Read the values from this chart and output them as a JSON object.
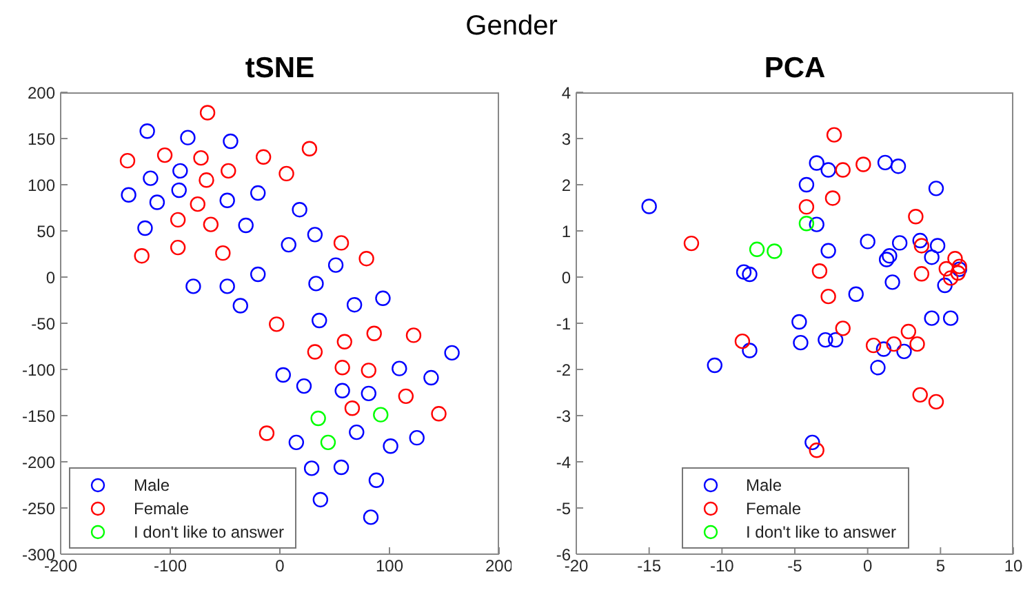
{
  "chart_data": [
    {
      "type": "scatter",
      "title": "tSNE",
      "annotations": [
        "Gender"
      ],
      "xlim": [
        -200,
        200
      ],
      "xticks": [
        -200,
        -100,
        0,
        100,
        200
      ],
      "ylim": [
        -300,
        200
      ],
      "yticks": [
        -300,
        -250,
        -200,
        -150,
        -100,
        -50,
        0,
        50,
        100,
        150,
        200
      ],
      "grid": false,
      "legend": "bottom left",
      "marker": "circle",
      "series": [
        {
          "name": "Male",
          "color": "#0000ff",
          "x": [
            -121,
            -84,
            -45,
            -118,
            -91,
            -138,
            -112,
            -92,
            -48,
            -20,
            -123,
            -31,
            18,
            32,
            8,
            51,
            -20,
            -79,
            -48,
            -36,
            33,
            68,
            94,
            36,
            157,
            3,
            22,
            57,
            81,
            109,
            138,
            15,
            70,
            101,
            125,
            29,
            56,
            88,
            37,
            83
          ],
          "values": [
            158,
            151,
            147,
            107,
            115,
            89,
            81,
            94,
            83,
            91,
            53,
            56,
            73,
            46,
            35,
            13,
            3,
            -10,
            -10,
            -31,
            -7,
            -30,
            -23,
            -47,
            -82,
            -106,
            -118,
            -123,
            -126,
            -99,
            -109,
            -179,
            -168,
            -183,
            -174,
            -207,
            -206,
            -220,
            -241,
            -260
          ]
        },
        {
          "name": "Female",
          "color": "#ff0000",
          "x": [
            -66,
            -105,
            -72,
            -139,
            -15,
            27,
            -47,
            6,
            -67,
            -75,
            -93,
            -63,
            -93,
            -126,
            -52,
            56,
            79,
            -3,
            59,
            86,
            122,
            32,
            57,
            81,
            115,
            66,
            145,
            -12
          ],
          "values": [
            178,
            132,
            129,
            126,
            130,
            139,
            115,
            112,
            105,
            79,
            62,
            57,
            32,
            23,
            26,
            37,
            20,
            -51,
            -70,
            -61,
            -63,
            -81,
            -98,
            -101,
            -129,
            -142,
            -148,
            -169
          ]
        },
        {
          "name": "I don't like to answer",
          "color": "#00ff00",
          "x": [
            35,
            92,
            44
          ],
          "values": [
            -153,
            -149,
            -179
          ]
        }
      ]
    },
    {
      "type": "scatter",
      "title": "PCA",
      "xlim": [
        -20,
        10
      ],
      "xticks": [
        -20,
        -15,
        -10,
        -5,
        0,
        5,
        10
      ],
      "ylim": [
        -6,
        4
      ],
      "yticks": [
        -6,
        -5,
        -4,
        -3,
        -2,
        -1,
        0,
        1,
        2,
        3,
        4
      ],
      "grid": false,
      "legend": "bottom",
      "marker": "circle",
      "series": [
        {
          "name": "Male",
          "color": "#0000ff",
          "x": [
            -15.0,
            -8.5,
            -8.1,
            -4.2,
            -3.5,
            -2.7,
            -3.5,
            -2.7,
            0.0,
            1.2,
            2.1,
            4.7,
            1.3,
            1.5,
            2.2,
            3.6,
            4.8,
            4.4,
            1.7,
            -0.8,
            5.3,
            6.3,
            -4.7,
            4.4,
            5.7,
            -8.1,
            -10.5,
            -4.6,
            -2.9,
            -2.2,
            1.1,
            2.5,
            0.7,
            -3.8
          ],
          "values": [
            1.53,
            0.11,
            0.06,
            2.0,
            2.47,
            2.32,
            1.14,
            0.57,
            0.77,
            2.48,
            2.4,
            1.92,
            0.38,
            0.46,
            0.74,
            0.79,
            0.68,
            0.43,
            -0.11,
            -0.37,
            -0.18,
            0.17,
            -0.97,
            -0.89,
            -0.89,
            -1.59,
            -1.91,
            -1.42,
            -1.36,
            -1.36,
            -1.56,
            -1.61,
            -1.96,
            -3.58
          ]
        },
        {
          "name": "Female",
          "color": "#ff0000",
          "x": [
            -2.3,
            -1.7,
            -0.3,
            -2.4,
            -4.2,
            -12.1,
            -3.3,
            3.3,
            3.7,
            3.7,
            6.0,
            5.4,
            5.7,
            6.2,
            6.3,
            -2.7,
            -1.7,
            -8.6,
            0.4,
            1.8,
            2.8,
            3.4,
            3.6,
            4.7,
            -3.5
          ],
          "values": [
            3.08,
            2.32,
            2.44,
            1.71,
            1.52,
            0.73,
            0.13,
            1.31,
            0.68,
            0.07,
            0.4,
            0.18,
            -0.02,
            0.09,
            0.23,
            -0.42,
            -1.11,
            -1.39,
            -1.48,
            -1.45,
            -1.18,
            -1.45,
            -2.55,
            -2.7,
            -3.75
          ]
        },
        {
          "name": "I don't like to answer",
          "color": "#00ff00",
          "x": [
            -7.6,
            -6.4,
            -4.2
          ],
          "values": [
            0.6,
            0.56,
            1.16
          ]
        }
      ]
    }
  ]
}
